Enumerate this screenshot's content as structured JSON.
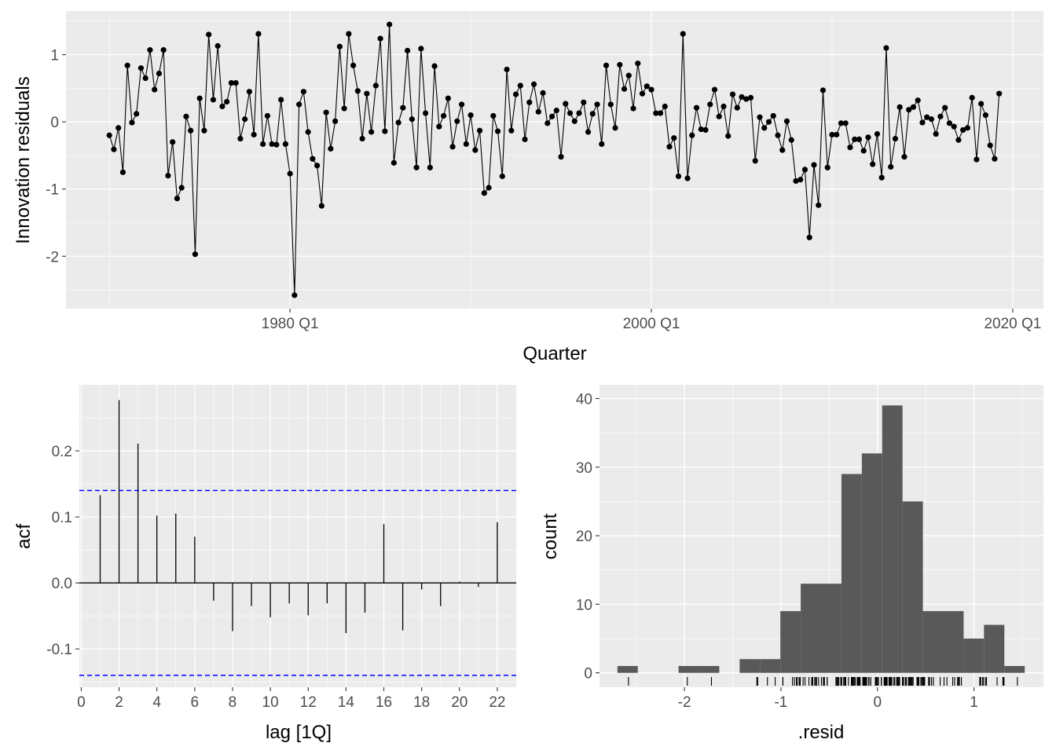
{
  "chart_data": [
    {
      "type": "line",
      "title": "",
      "xlabel": "Quarter",
      "ylabel": "Innovation residuals",
      "start": "1970 Q1",
      "xlim": [
        1967.6,
        2021.7
      ],
      "ylim": [
        -2.78,
        1.65
      ],
      "x_ticks": [
        {
          "value": 1980,
          "label": "1980 Q1"
        },
        {
          "value": 2000,
          "label": "2000 Q1"
        },
        {
          "value": 2020,
          "label": "2020 Q1"
        }
      ],
      "y_ticks": [
        {
          "value": -2,
          "label": "-2"
        },
        {
          "value": -1,
          "label": "-1"
        },
        {
          "value": 0,
          "label": "0"
        },
        {
          "value": 1,
          "label": "1"
        }
      ],
      "values": [
        -0.2,
        -0.41,
        -0.09,
        -0.75,
        0.84,
        -0.01,
        0.12,
        0.8,
        0.65,
        1.07,
        0.48,
        0.72,
        1.07,
        -0.8,
        -0.3,
        -1.14,
        -0.98,
        0.08,
        -0.13,
        -1.97,
        0.35,
        -0.13,
        1.3,
        0.33,
        1.13,
        0.23,
        0.3,
        0.58,
        0.58,
        -0.25,
        0.04,
        0.45,
        -0.19,
        1.31,
        -0.33,
        0.09,
        -0.33,
        -0.34,
        0.33,
        -0.33,
        -0.77,
        -2.58,
        0.26,
        0.45,
        -0.15,
        -0.55,
        -0.65,
        -1.25,
        0.14,
        -0.4,
        0.01,
        1.12,
        0.2,
        1.31,
        0.84,
        0.46,
        -0.25,
        0.42,
        -0.15,
        0.54,
        1.24,
        -0.14,
        1.45,
        -0.61,
        -0.01,
        0.21,
        1.06,
        0.04,
        -0.68,
        1.09,
        0.13,
        -0.68,
        0.83,
        -0.07,
        0.09,
        0.35,
        -0.37,
        0.01,
        0.26,
        -0.33,
        0.1,
        -0.42,
        -0.13,
        -1.06,
        -0.98,
        0.09,
        -0.14,
        -0.81,
        0.78,
        -0.13,
        0.41,
        0.54,
        -0.26,
        0.29,
        0.56,
        0.15,
        0.43,
        -0.02,
        0.08,
        0.17,
        -0.52,
        0.27,
        0.13,
        0.01,
        0.13,
        0.29,
        -0.15,
        0.12,
        0.26,
        -0.33,
        0.84,
        0.26,
        -0.09,
        0.85,
        0.49,
        0.69,
        0.2,
        0.87,
        0.42,
        0.53,
        0.48,
        0.13,
        0.13,
        0.23,
        -0.37,
        -0.24,
        -0.81,
        1.31,
        -0.84,
        -0.2,
        0.21,
        -0.11,
        -0.12,
        0.26,
        0.48,
        0.08,
        0.23,
        -0.21,
        0.41,
        0.21,
        0.37,
        0.34,
        0.36,
        -0.58,
        0.07,
        -0.09,
        0.0,
        0.09,
        -0.2,
        -0.42,
        0.01,
        -0.27,
        -0.88,
        -0.86,
        -0.71,
        -1.72,
        -0.64,
        -1.24,
        0.47,
        -0.68,
        -0.19,
        -0.19,
        -0.02,
        -0.02,
        -0.38,
        -0.26,
        -0.26,
        -0.43,
        -0.23,
        -0.63,
        -0.18,
        -0.83,
        1.1,
        -0.67,
        -0.25,
        0.22,
        -0.52,
        0.18,
        0.22,
        0.32,
        -0.01,
        0.07,
        0.04,
        -0.18,
        0.08,
        0.21,
        -0.02,
        -0.07,
        -0.27,
        -0.12,
        -0.09,
        0.36,
        -0.56,
        0.27,
        0.1,
        -0.35,
        -0.55,
        0.42
      ]
    },
    {
      "type": "bar",
      "subtype": "acf",
      "xlabel": "lag [1Q]",
      "ylabel": "acf",
      "xlim": [
        -0.1,
        23
      ],
      "ylim": [
        -0.158,
        0.3
      ],
      "lags": [
        1,
        2,
        3,
        4,
        5,
        6,
        7,
        8,
        9,
        10,
        11,
        12,
        13,
        14,
        15,
        16,
        17,
        18,
        19,
        20,
        21,
        22
      ],
      "values": [
        0.133,
        0.277,
        0.211,
        0.102,
        0.105,
        0.07,
        -0.027,
        -0.073,
        -0.035,
        -0.052,
        -0.031,
        -0.049,
        -0.031,
        -0.076,
        -0.045,
        0.089,
        -0.072,
        -0.01,
        -0.035,
        0.002,
        -0.006,
        0.092
      ],
      "ci": 0.14,
      "x_ticks": [
        {
          "value": 0,
          "label": "0"
        },
        {
          "value": 2,
          "label": "2"
        },
        {
          "value": 4,
          "label": "4"
        },
        {
          "value": 6,
          "label": "6"
        },
        {
          "value": 8,
          "label": "8"
        },
        {
          "value": 10,
          "label": "10"
        },
        {
          "value": 12,
          "label": "12"
        },
        {
          "value": 14,
          "label": "14"
        },
        {
          "value": 16,
          "label": "16"
        },
        {
          "value": 18,
          "label": "18"
        },
        {
          "value": 20,
          "label": "20"
        },
        {
          "value": 22,
          "label": "22"
        }
      ],
      "y_ticks": [
        {
          "value": -0.1,
          "label": "-0.1"
        },
        {
          "value": 0,
          "label": "0.0"
        },
        {
          "value": 0.1,
          "label": "0.1"
        },
        {
          "value": 0.2,
          "label": "0.2"
        }
      ]
    },
    {
      "type": "bar",
      "subtype": "histogram",
      "xlabel": ".resid",
      "ylabel": "count",
      "bin_start": -2.694,
      "bin_width": 0.211,
      "counts": [
        1,
        0,
        0,
        1,
        1,
        0,
        2,
        2,
        9,
        13,
        13,
        29,
        32,
        39,
        25,
        9,
        9,
        5,
        7,
        1
      ],
      "xlim": [
        -2.88,
        1.72
      ],
      "ylim": [
        -2.1,
        42
      ],
      "x_ticks": [
        {
          "value": -2,
          "label": "-2"
        },
        {
          "value": -1,
          "label": "-1"
        },
        {
          "value": 0,
          "label": "0"
        },
        {
          "value": 1,
          "label": "1"
        }
      ],
      "y_ticks": [
        {
          "value": 0,
          "label": "0"
        },
        {
          "value": 10,
          "label": "10"
        },
        {
          "value": 20,
          "label": "20"
        },
        {
          "value": 30,
          "label": "30"
        },
        {
          "value": 40,
          "label": "40"
        }
      ]
    }
  ],
  "colors": {
    "panel": "#EBEBEB",
    "grid": "#FFFFFF",
    "bar": "#595959",
    "ci": "#0000FF",
    "line": "#000000"
  }
}
